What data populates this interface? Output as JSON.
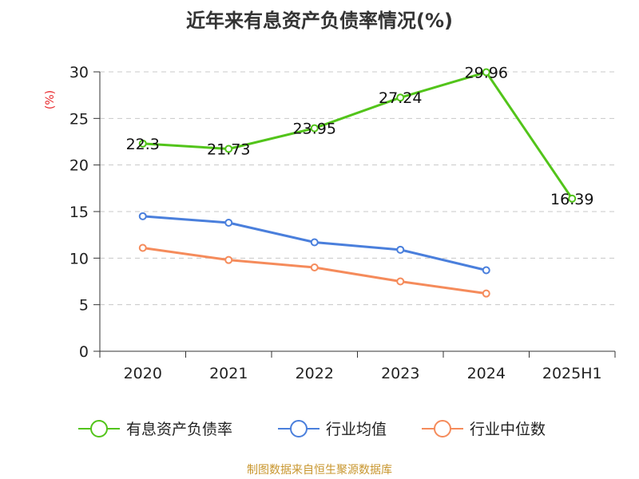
{
  "chart_data": {
    "type": "line",
    "title": "近年来有息资产负债率情况(%)",
    "ylabel": "(%)",
    "xlabel": "",
    "categories": [
      "2020",
      "2021",
      "2022",
      "2023",
      "2024",
      "2025H1"
    ],
    "ylim": [
      0,
      30
    ],
    "yticks": [
      0,
      5,
      10,
      15,
      20,
      25,
      30
    ],
    "grid": "horizontal-dashed",
    "legend_position": "bottom",
    "series": [
      {
        "name": "有息资产负债率",
        "color": "#52c41a",
        "values": [
          22.3,
          21.73,
          23.95,
          27.24,
          29.96,
          16.39
        ],
        "labels": [
          "22.3",
          "21.73",
          "23.95",
          "27.24",
          "29.96",
          "16.39"
        ],
        "show_labels": true
      },
      {
        "name": "行业均值",
        "color": "#4a7fdc",
        "values": [
          14.5,
          13.8,
          11.7,
          10.9,
          8.7,
          null
        ],
        "show_labels": false
      },
      {
        "name": "行业中位数",
        "color": "#f58b5b",
        "values": [
          11.1,
          9.8,
          9.0,
          7.5,
          6.2,
          null
        ],
        "show_labels": false
      }
    ]
  },
  "source": "制图数据来自恒生聚源数据库"
}
